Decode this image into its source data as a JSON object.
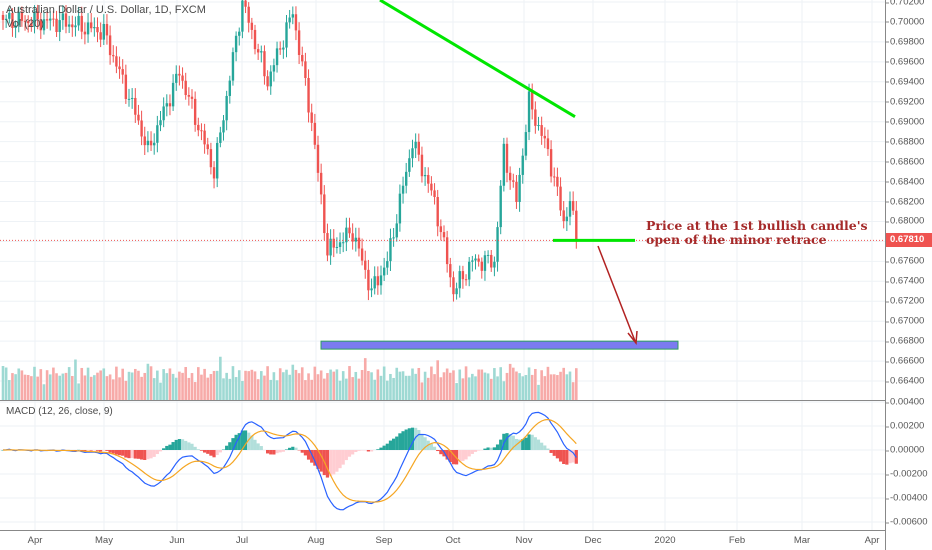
{
  "header": {
    "symbol_title": "Australian Dollar / U.S. Dollar, 1D, FXCM",
    "volume_label": "Vol (20)",
    "macd_label": "MACD (12, 26, close, 9)"
  },
  "annotation": {
    "line1": "Price at the 1st bullish candle's",
    "line2": "open of the minor retrace"
  },
  "colors": {
    "up": "#26a69a",
    "down": "#ef5350",
    "trendline": "#00e600",
    "zone": "#7b7bf0",
    "arrow": "#b22222",
    "macd": "#2962ff",
    "signal": "#f5a623"
  },
  "chart_data": {
    "type": "candlestick",
    "title": "Australian Dollar / U.S. Dollar, 1D, FXCM",
    "price_axis": {
      "ticks": [
        "0.70200",
        "0.70000",
        "0.69800",
        "0.69600",
        "0.69400",
        "0.69200",
        "0.69000",
        "0.68800",
        "0.68600",
        "0.68400",
        "0.68200",
        "0.68000",
        "0.67600",
        "0.67400",
        "0.67200",
        "0.67000",
        "0.66800",
        "0.66600",
        "0.66400"
      ],
      "range": [
        0.663,
        0.7022
      ],
      "last_price": "0.67810"
    },
    "macd_axis": {
      "ticks": [
        "0.00400",
        "0.00200",
        "0.00000",
        "-0.00200",
        "-0.00400",
        "-0.00600"
      ],
      "range": [
        -0.0065,
        0.0042
      ]
    },
    "time_axis": [
      "Apr",
      "May",
      "Jun",
      "Jul",
      "Aug",
      "Sep",
      "Oct",
      "Nov",
      "Dec",
      "2020",
      "Feb",
      "Mar",
      "Apr"
    ],
    "bars_count": 183,
    "close_waypoints": [
      [
        0,
        0.7002
      ],
      [
        19,
        0.7
      ],
      [
        32,
        0.699
      ],
      [
        43,
        0.69
      ],
      [
        46,
        0.687
      ],
      [
        56,
        0.695
      ],
      [
        67,
        0.685
      ],
      [
        76,
        0.702
      ],
      [
        84,
        0.694
      ],
      [
        92,
        0.701
      ],
      [
        98,
        0.69
      ],
      [
        103,
        0.677
      ],
      [
        111,
        0.679
      ],
      [
        117,
        0.673
      ],
      [
        122,
        0.676
      ],
      [
        130,
        0.688
      ],
      [
        137,
        0.682
      ],
      [
        143,
        0.673
      ],
      [
        149,
        0.676
      ],
      [
        156,
        0.676
      ],
      [
        159,
        0.687
      ],
      [
        163,
        0.682
      ],
      [
        167,
        0.692
      ],
      [
        173,
        0.687
      ],
      [
        178,
        0.68
      ],
      [
        180,
        0.682
      ],
      [
        182,
        0.6781
      ]
    ],
    "drawings": {
      "descending_trendline_price": [
        0.7022,
        0.6905
      ],
      "support_zone": [
        0.6672,
        0.668
      ],
      "minor_level": 0.6781
    }
  }
}
